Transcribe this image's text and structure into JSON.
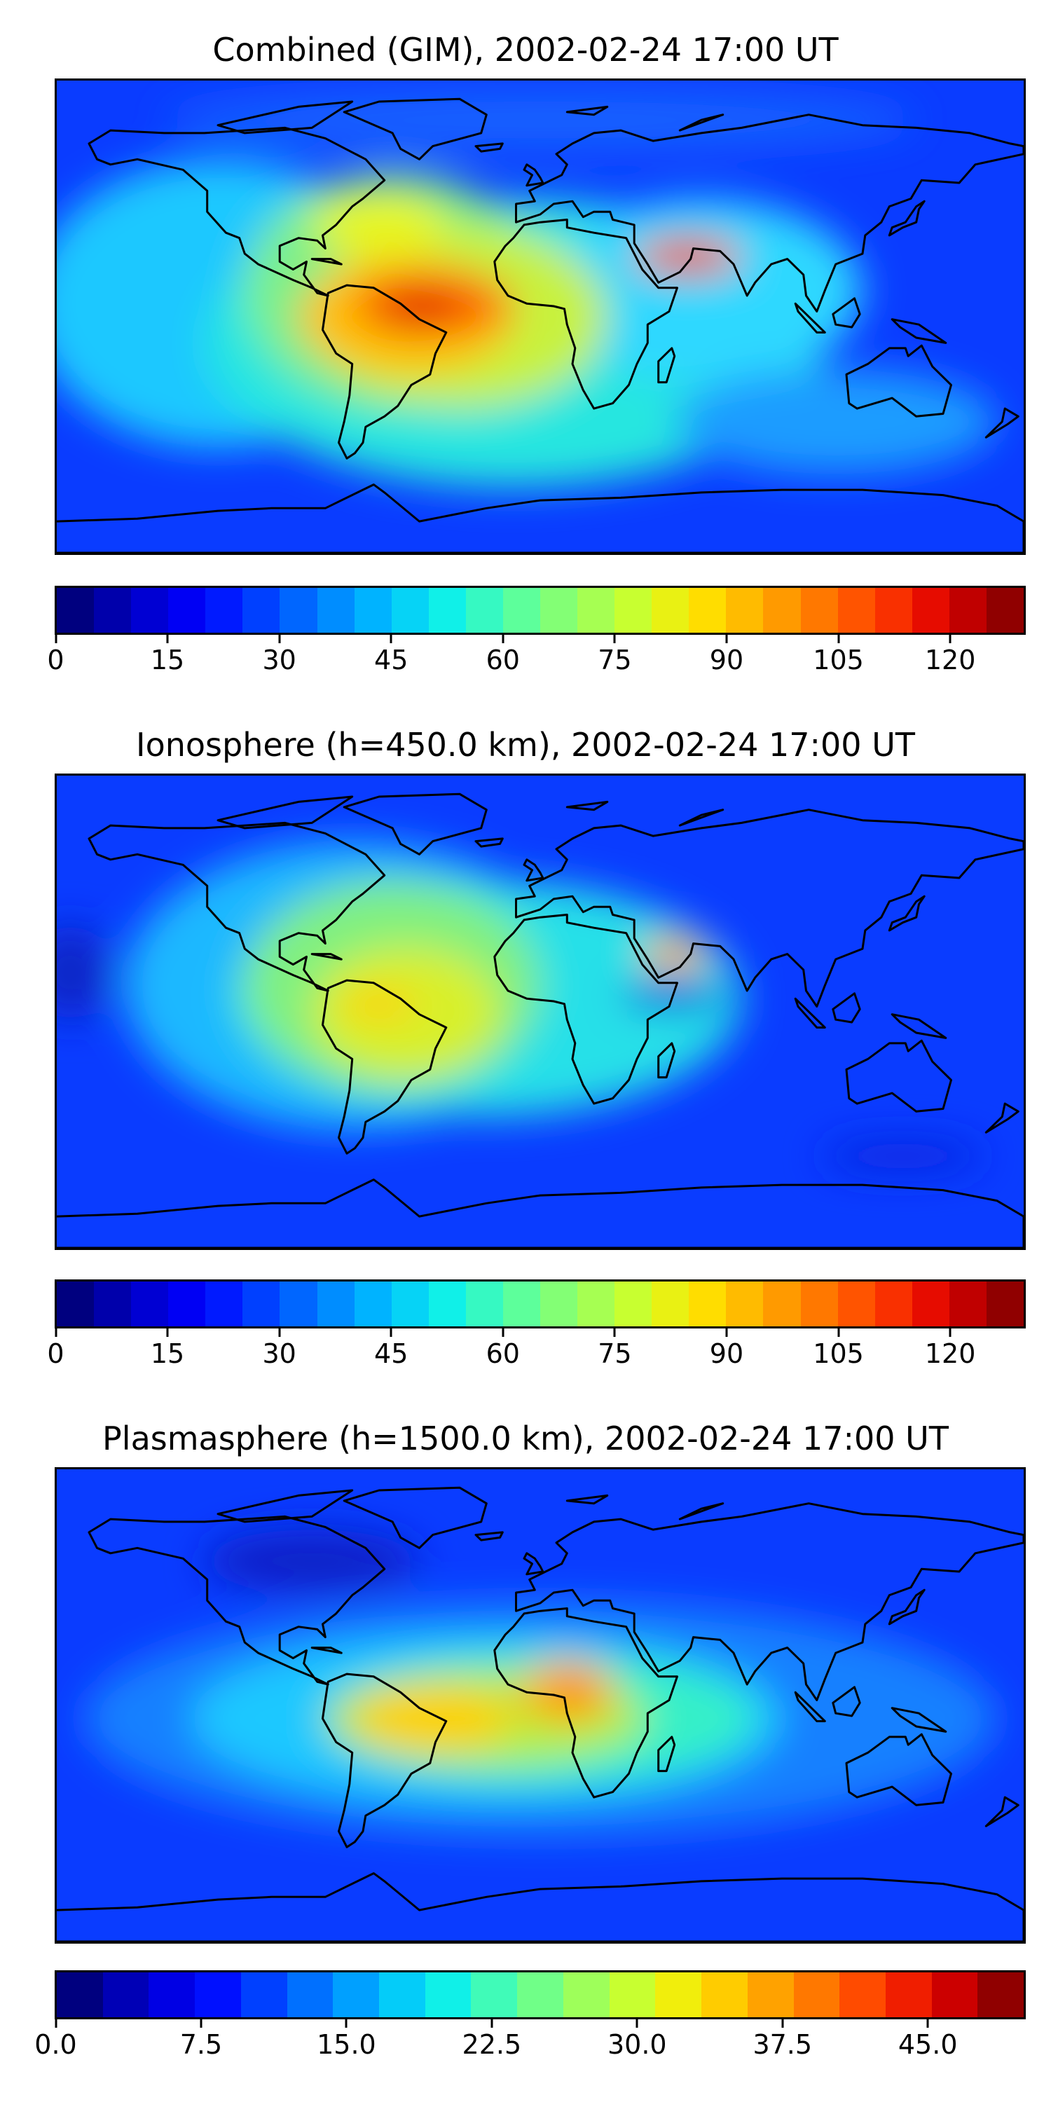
{
  "panels": [
    {
      "id": "combined",
      "title": "Combined (GIM), 2002-02-24 17:00 UT",
      "background_color": "#0a3cff",
      "colorbar": {
        "min": 0,
        "max": 130,
        "levels": 26,
        "tick_values": [
          0,
          15,
          30,
          45,
          60,
          75,
          90,
          105,
          120
        ],
        "tick_labels": [
          "0",
          "15",
          "30",
          "45",
          "60",
          "75",
          "90",
          "105",
          "120"
        ]
      },
      "blobs": [
        {
          "lon": -120,
          "lat": 5,
          "rlon": 70,
          "rlat": 55,
          "color": "#1ec8ff"
        },
        {
          "lon": -10,
          "lat": -10,
          "rlon": 115,
          "rlat": 55,
          "color": "#28e6e0"
        },
        {
          "lon": 60,
          "lat": 10,
          "rlon": 60,
          "rlat": 35,
          "color": "#2ed8ff"
        },
        {
          "lon": -55,
          "lat": 10,
          "rlon": 55,
          "rlat": 45,
          "color": "#7cf08a"
        },
        {
          "lon": -30,
          "lat": 0,
          "rlon": 55,
          "rlat": 35,
          "color": "#c8f23c"
        },
        {
          "lon": -60,
          "lat": 35,
          "rlon": 25,
          "rlat": 12,
          "color": "#e8f51e"
        },
        {
          "lon": -50,
          "lat": 0,
          "rlon": 40,
          "rlat": 22,
          "color": "#ffc000"
        },
        {
          "lon": -40,
          "lat": 5,
          "rlon": 30,
          "rlat": 12,
          "color": "#ff6a00"
        },
        {
          "lon": -45,
          "lat": 3,
          "rlon": 16,
          "rlat": 7,
          "color": "#e02000"
        },
        {
          "lon": 55,
          "lat": 23,
          "rlon": 20,
          "rlat": 7,
          "color": "#ff6a00"
        },
        {
          "lon": 55,
          "lat": 23,
          "rlon": 9,
          "rlat": 4,
          "color": "#e02000"
        },
        {
          "lon": 110,
          "lat": -40,
          "rlon": 60,
          "rlat": 20,
          "color": "#1c9cff"
        },
        {
          "lon": 0,
          "lat": 75,
          "rlon": 140,
          "rlat": 12,
          "color": "#1460ff"
        }
      ]
    },
    {
      "id": "ionosphere",
      "title": "Ionosphere  (h=450.0 km), 2002-02-24 17:00 UT",
      "background_color": "#0a3cff",
      "colorbar": {
        "min": 0,
        "max": 130,
        "levels": 26,
        "tick_values": [
          0,
          15,
          30,
          45,
          60,
          75,
          90,
          105,
          120
        ],
        "tick_labels": [
          "0",
          "15",
          "30",
          "45",
          "60",
          "75",
          "90",
          "105",
          "120"
        ]
      },
      "blobs": [
        {
          "lon": -70,
          "lat": 10,
          "rlon": 85,
          "rlat": 55,
          "color": "#1eb8ff"
        },
        {
          "lon": -20,
          "lat": 5,
          "rlon": 95,
          "rlat": 45,
          "color": "#28e0e8"
        },
        {
          "lon": -55,
          "lat": 10,
          "rlon": 55,
          "rlat": 40,
          "color": "#80f080"
        },
        {
          "lon": -50,
          "lat": 0,
          "rlon": 35,
          "rlat": 25,
          "color": "#d8f02a"
        },
        {
          "lon": -60,
          "lat": 3,
          "rlon": 15,
          "rlat": 6,
          "color": "#ffd000"
        },
        {
          "lon": 50,
          "lat": 22,
          "rlon": 12,
          "rlat": 6,
          "color": "#ff9a00"
        },
        {
          "lon": 50,
          "lat": 6,
          "rlon": 20,
          "rlat": 5,
          "color": "#0a1fe0"
        },
        {
          "lon": -175,
          "lat": 15,
          "rlon": 15,
          "rlat": 18,
          "color": "#0a28c8"
        },
        {
          "lon": 135,
          "lat": -55,
          "rlon": 30,
          "rlat": 6,
          "color": "#0a28e0"
        }
      ]
    },
    {
      "id": "plasmasphere",
      "title": "Plasmasphere (h=1500.0 km), 2002-02-24 17:00 UT",
      "background_color": "#0a3cff",
      "colorbar": {
        "min": 0,
        "max": 50,
        "levels": 21,
        "tick_values": [
          0,
          7.5,
          15,
          22.5,
          30,
          37.5,
          45
        ],
        "tick_labels": [
          "0.0",
          "7.5",
          "15.0",
          "22.5",
          "30.0",
          "37.5",
          "45.0"
        ]
      },
      "blobs": [
        {
          "lon": 0,
          "lat": -5,
          "rlon": 170,
          "rlat": 45,
          "color": "#1480ff"
        },
        {
          "lon": -20,
          "lat": -5,
          "rlon": 110,
          "rlat": 32,
          "color": "#1ec8ff"
        },
        {
          "lon": 0,
          "lat": -5,
          "rlon": 80,
          "rlat": 25,
          "color": "#34f0c8"
        },
        {
          "lon": -20,
          "lat": -5,
          "rlon": 60,
          "rlat": 18,
          "color": "#b4f040"
        },
        {
          "lon": -40,
          "lat": -5,
          "rlon": 30,
          "rlat": 12,
          "color": "#ffd000"
        },
        {
          "lon": 10,
          "lat": 5,
          "rlon": 18,
          "rlat": 12,
          "color": "#ffb000"
        },
        {
          "lon": 12,
          "lat": 6,
          "rlon": 7,
          "rlat": 5,
          "color": "#ff6a00"
        },
        {
          "lon": -85,
          "lat": 55,
          "rlon": 40,
          "rlat": 12,
          "color": "#0a22c8"
        }
      ]
    }
  ],
  "colormap": [
    "#00007f",
    "#0000c8",
    "#0000ff",
    "#0040ff",
    "#0080ff",
    "#00c0ff",
    "#10f0e8",
    "#50ffa8",
    "#90ff68",
    "#c8ff30",
    "#ffe800",
    "#ffb000",
    "#ff7800",
    "#ff3c00",
    "#e00000",
    "#900000"
  ],
  "coast_color": "#000000"
}
